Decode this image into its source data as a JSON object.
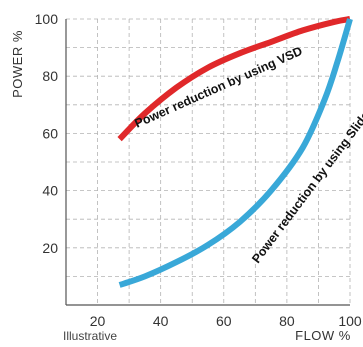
{
  "chart_data": {
    "type": "line",
    "xlabel": "FLOW %",
    "ylabel": "POWER %",
    "note": "Illustrative",
    "xlim": [
      10,
      100
    ],
    "ylim": [
      0,
      100
    ],
    "x_ticks": [
      "20",
      "40",
      "60",
      "80",
      "100"
    ],
    "y_ticks": [
      "20",
      "40",
      "60",
      "80",
      "100"
    ],
    "grid": true,
    "series": [
      {
        "color": "#e0282a",
        "points": [
          [
            27,
            58
          ],
          [
            35,
            67
          ],
          [
            45,
            76
          ],
          [
            55,
            83
          ],
          [
            65,
            88
          ],
          [
            75,
            92
          ],
          [
            85,
            96
          ],
          [
            95,
            99
          ],
          [
            100,
            100
          ]
        ]
      },
      {
        "color": "#39a8d8",
        "points": [
          [
            27,
            7
          ],
          [
            35,
            10
          ],
          [
            45,
            15
          ],
          [
            55,
            21
          ],
          [
            65,
            29
          ],
          [
            75,
            40
          ],
          [
            85,
            55
          ],
          [
            92,
            72
          ],
          [
            96,
            85
          ],
          [
            100,
            100
          ]
        ]
      }
    ],
    "annotations": [
      {
        "text": "Power reduction by using VSD"
      },
      {
        "text": "Power reduction by using Slide Valve"
      }
    ]
  }
}
